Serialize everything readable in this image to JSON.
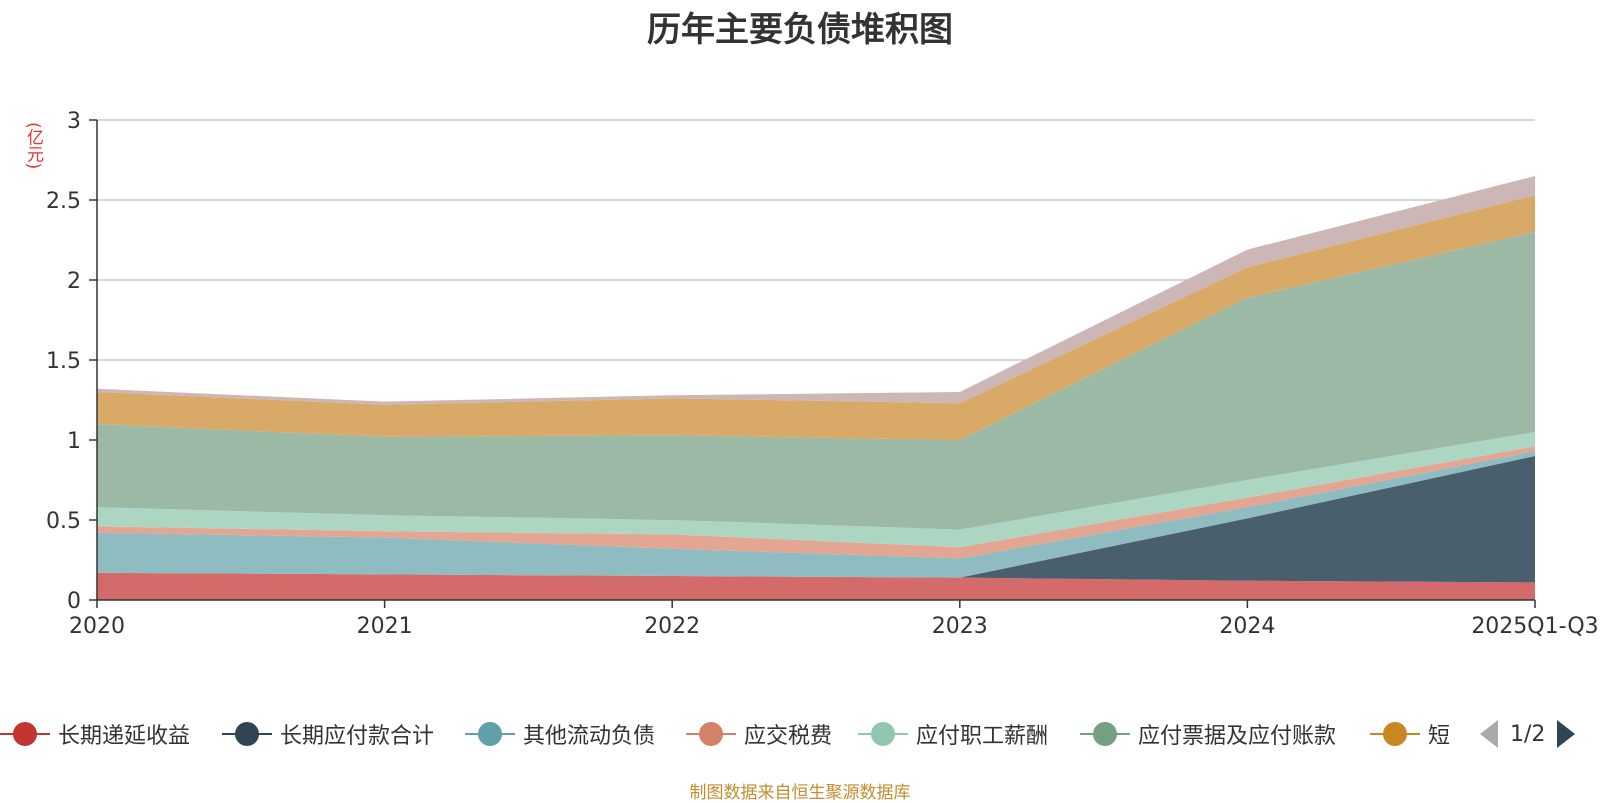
{
  "chart_data": {
    "type": "area",
    "stacked": true,
    "title": "历年主要负债堆积图",
    "ylabel": "(亿元)",
    "xlabel": "",
    "ylim": [
      0,
      3
    ],
    "yticks": [
      0,
      0.5,
      1,
      1.5,
      2,
      2.5,
      3
    ],
    "ytick_labels": [
      "0",
      "0.5",
      "1",
      "1.5",
      "2",
      "2.5",
      "3"
    ],
    "categories": [
      "2020",
      "2021",
      "2022",
      "2023",
      "2024",
      "2025Q1-Q3"
    ],
    "grid": true,
    "series": [
      {
        "name": "长期递延收益",
        "color": "#d46a6a",
        "values": [
          0.17,
          0.16,
          0.15,
          0.14,
          0.12,
          0.11
        ]
      },
      {
        "name": "长期应付款合计",
        "color": "#4a5f6e",
        "values": [
          0,
          0,
          0,
          0,
          0.39,
          0.79
        ]
      },
      {
        "name": "其他流动负债",
        "color": "#8fbcc1",
        "values": [
          0.25,
          0.23,
          0.17,
          0.12,
          0.07,
          0.03
        ]
      },
      {
        "name": "应交税费",
        "color": "#e3a693",
        "values": [
          0.04,
          0.04,
          0.09,
          0.07,
          0.06,
          0.03
        ]
      },
      {
        "name": "应付职工薪酬",
        "color": "#add6c2",
        "values": [
          0.12,
          0.1,
          0.09,
          0.11,
          0.11,
          0.09
        ]
      },
      {
        "name": "应付票据及应付账款",
        "color": "#9cb9a6",
        "values": [
          0.52,
          0.49,
          0.53,
          0.56,
          1.14,
          1.25
        ]
      },
      {
        "name": "短",
        "color": "#d9aa67",
        "values": [
          0.2,
          0.2,
          0.23,
          0.23,
          0.19,
          0.23
        ]
      },
      {
        "name": "",
        "color": "#cdb7b6",
        "values": [
          0.02,
          0.02,
          0.02,
          0.07,
          0.11,
          0.12
        ]
      }
    ]
  },
  "legend": {
    "items": [
      {
        "label": "长期递延收益",
        "color": "#c23531"
      },
      {
        "label": "长期应付款合计",
        "color": "#2f4554"
      },
      {
        "label": "其他流动负债",
        "color": "#61a0a8"
      },
      {
        "label": "应交税费",
        "color": "#d48265"
      },
      {
        "label": "应付职工薪酬",
        "color": "#91c7ae"
      },
      {
        "label": "应付票据及应付账款",
        "color": "#749f83"
      },
      {
        "label": "短",
        "color": "#ca8622"
      }
    ],
    "page": "1/2"
  },
  "source": "制图数据来自恒生聚源数据库"
}
